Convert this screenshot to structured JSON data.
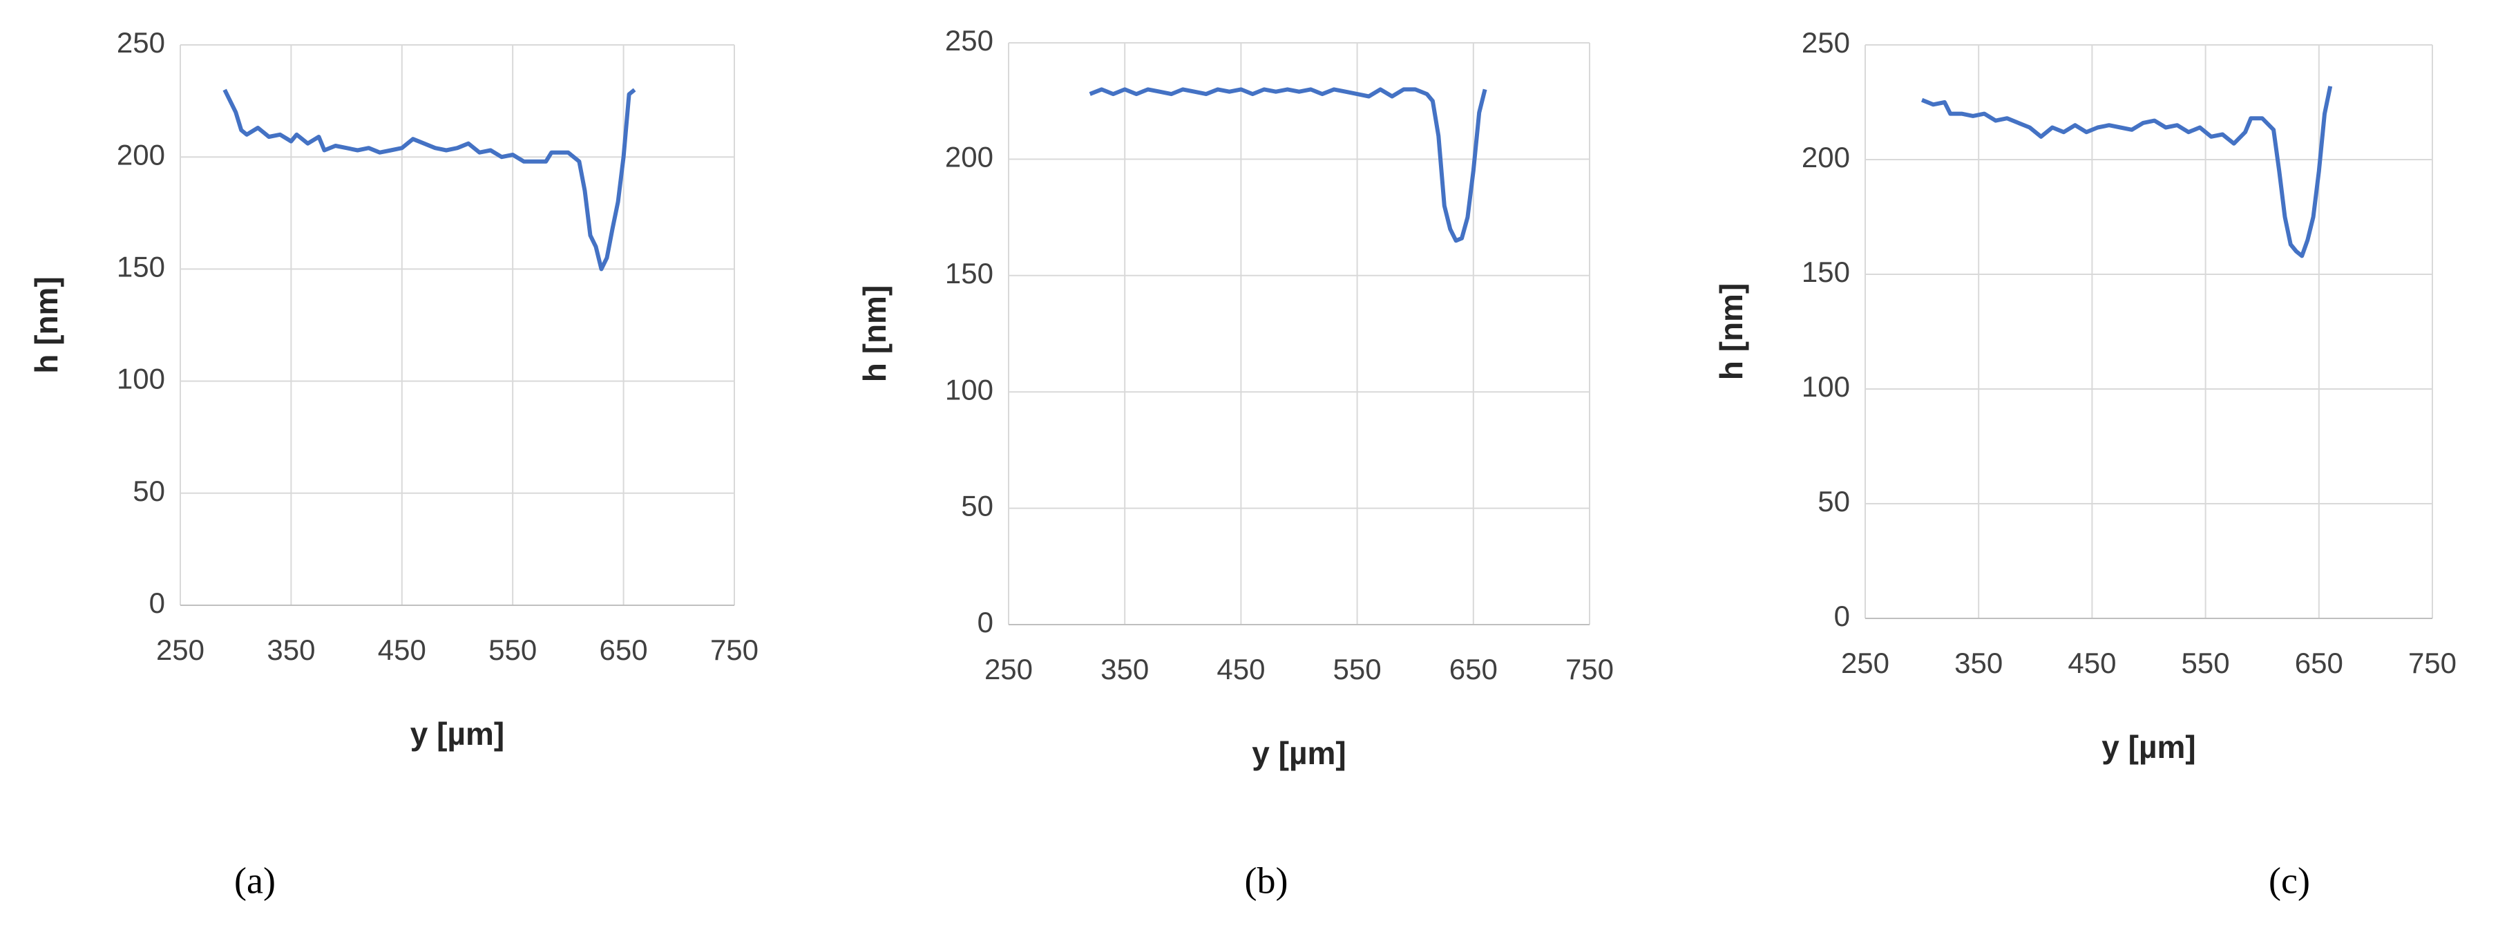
{
  "chart_data": [
    {
      "type": "line",
      "caption": "(a)",
      "x_label": "y [µm]",
      "y_label": "h [nm]",
      "color": "#4472c4",
      "grid": true,
      "xlim": [
        250,
        750
      ],
      "xticks": [
        250,
        350,
        450,
        550,
        650,
        750
      ],
      "ylim": [
        0,
        250
      ],
      "yticks": [
        0,
        50,
        100,
        150,
        200,
        250
      ],
      "x": [
        290,
        300,
        305,
        310,
        320,
        330,
        340,
        350,
        355,
        365,
        375,
        380,
        390,
        400,
        410,
        420,
        430,
        440,
        450,
        460,
        470,
        480,
        490,
        500,
        510,
        520,
        530,
        540,
        550,
        560,
        570,
        580,
        585,
        600,
        610,
        615,
        620,
        625,
        630,
        635,
        640,
        645,
        650,
        655,
        660
      ],
      "values": [
        230,
        220,
        212,
        210,
        213,
        209,
        210,
        207,
        210,
        206,
        209,
        203,
        205,
        204,
        203,
        204,
        202,
        203,
        204,
        208,
        206,
        204,
        203,
        204,
        206,
        202,
        203,
        200,
        201,
        198,
        198,
        198,
        202,
        202,
        198,
        185,
        165,
        160,
        150,
        155,
        168,
        180,
        200,
        228,
        230
      ]
    },
    {
      "type": "line",
      "caption": "(b)",
      "x_label": "y [µm]",
      "y_label": "h [nm]",
      "color": "#4472c4",
      "grid": true,
      "xlim": [
        250,
        750
      ],
      "xticks": [
        250,
        350,
        450,
        550,
        650,
        750
      ],
      "ylim": [
        0,
        250
      ],
      "yticks": [
        0,
        50,
        100,
        150,
        200,
        250
      ],
      "x": [
        320,
        330,
        340,
        350,
        360,
        370,
        380,
        390,
        400,
        410,
        420,
        430,
        440,
        450,
        460,
        470,
        480,
        490,
        500,
        510,
        520,
        530,
        540,
        550,
        560,
        570,
        580,
        590,
        600,
        610,
        615,
        620,
        625,
        630,
        635,
        640,
        645,
        650,
        655,
        660
      ],
      "values": [
        228,
        230,
        228,
        230,
        228,
        230,
        229,
        228,
        230,
        229,
        228,
        230,
        229,
        230,
        228,
        230,
        229,
        230,
        229,
        230,
        228,
        230,
        229,
        228,
        227,
        230,
        227,
        230,
        230,
        228,
        225,
        210,
        180,
        170,
        165,
        166,
        175,
        195,
        220,
        230
      ]
    },
    {
      "type": "line",
      "caption": "(c)",
      "x_label": "y [µm]",
      "y_label": "h [nm]",
      "color": "#4472c4",
      "grid": true,
      "xlim": [
        250,
        750
      ],
      "xticks": [
        250,
        350,
        450,
        550,
        650,
        750
      ],
      "ylim": [
        0,
        250
      ],
      "yticks": [
        0,
        50,
        100,
        150,
        200,
        250
      ],
      "x": [
        300,
        310,
        320,
        325,
        335,
        345,
        355,
        365,
        375,
        385,
        395,
        405,
        415,
        425,
        435,
        445,
        455,
        465,
        475,
        485,
        495,
        505,
        515,
        525,
        535,
        545,
        555,
        565,
        575,
        585,
        590,
        600,
        610,
        615,
        620,
        625,
        630,
        635,
        640,
        645,
        650,
        655,
        660
      ],
      "values": [
        226,
        224,
        225,
        220,
        220,
        219,
        220,
        217,
        218,
        216,
        214,
        210,
        214,
        212,
        215,
        212,
        214,
        215,
        214,
        213,
        216,
        217,
        214,
        215,
        212,
        214,
        210,
        211,
        207,
        212,
        218,
        218,
        213,
        195,
        175,
        163,
        160,
        158,
        165,
        175,
        195,
        220,
        232
      ]
    }
  ]
}
